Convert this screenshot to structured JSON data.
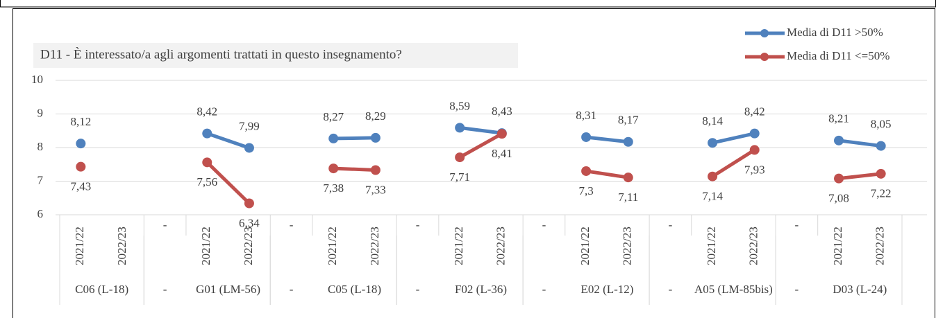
{
  "chart_data": {
    "type": "line",
    "title": "D11 - È interessato/a agli argomenti trattati in questo insegnamento?",
    "categories": [
      "2021/22",
      "2022/23",
      "-",
      "2021/22",
      "2022/23",
      "-",
      "2021/22",
      "2022/23",
      "-",
      "2021/22",
      "2022/23",
      "-",
      "2021/22",
      "2022/23",
      "-",
      "2021/22",
      "2022/23",
      "-",
      "2021/22",
      "2022/23"
    ],
    "groups": [
      "C06 (L-18)",
      "-",
      "G01 (LM-56)",
      "-",
      "C05 (L-18)",
      "-",
      "F02 (L-36)",
      "-",
      "E02 (L-12)",
      "-",
      "A05 (LM-85bis)",
      "-",
      "D03 (L-24)"
    ],
    "series": [
      {
        "name": "Media di D11 >50%",
        "color": "#4f81bd",
        "values": [
          8.12,
          null,
          null,
          8.42,
          7.99,
          null,
          8.27,
          8.29,
          null,
          8.59,
          8.43,
          null,
          8.31,
          8.17,
          null,
          8.14,
          8.42,
          null,
          8.21,
          8.05
        ],
        "value_labels": [
          "8,12",
          null,
          null,
          "8,42",
          "7,99",
          null,
          "8,27",
          "8,29",
          null,
          "8,59",
          "8,43",
          null,
          "8,31",
          "8,17",
          null,
          "8,14",
          "8,42",
          null,
          "8,21",
          "8,05"
        ]
      },
      {
        "name": "Media di D11 <=50%",
        "color": "#c0504d",
        "values": [
          7.43,
          null,
          null,
          7.56,
          6.34,
          null,
          7.38,
          7.33,
          null,
          7.71,
          8.41,
          null,
          7.3,
          7.11,
          null,
          7.14,
          7.93,
          null,
          7.08,
          7.22
        ],
        "value_labels": [
          "7,43",
          null,
          null,
          "7,56",
          "6,34",
          null,
          "7,38",
          "7,33",
          null,
          "7,71",
          "8,41",
          null,
          "7,3",
          "7,11",
          null,
          "7,14",
          "7,93",
          null,
          "7,08",
          "7,22"
        ]
      }
    ],
    "ylim": [
      6,
      10
    ],
    "yticks": [
      6,
      7,
      8,
      9,
      10
    ],
    "grid": true,
    "legend": "top-right"
  }
}
